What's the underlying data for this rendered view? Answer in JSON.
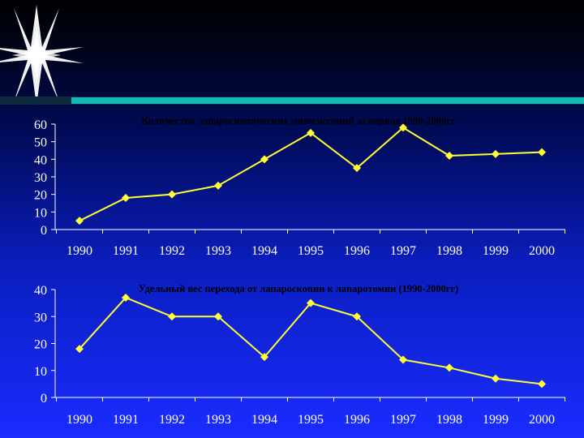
{
  "colors": {
    "series": "#ffff33",
    "axis": "#ffffff",
    "title": "#000000",
    "accent_bar": "#17b8b8"
  },
  "decoration": {
    "star_icon": "starburst-icon"
  },
  "chart_data": [
    {
      "type": "line",
      "title": "Количество лапароскопических миомэктомий за период 1990-2000гг",
      "categories": [
        "1990",
        "1991",
        "1992",
        "1993",
        "1994",
        "1995",
        "1996",
        "1997",
        "1998",
        "1999",
        "2000"
      ],
      "values": [
        5,
        18,
        20,
        25,
        40,
        55,
        35,
        58,
        42,
        43,
        44
      ],
      "xlabel": "",
      "ylabel": "",
      "ylim": [
        0,
        60
      ],
      "yticks": [
        0,
        10,
        20,
        30,
        40,
        50,
        60
      ],
      "ytick_labels": [
        "0",
        "10",
        "20",
        "30",
        "40",
        "50",
        "60"
      ],
      "grid": false,
      "legend": "none"
    },
    {
      "type": "line",
      "title": "Удельный вес перехода от лапароскопии к лапаротомии (1990-2000гг)",
      "categories": [
        "1990",
        "1991",
        "1992",
        "1993",
        "1994",
        "1995",
        "1996",
        "1997",
        "1998",
        "1999",
        "2000"
      ],
      "values": [
        18,
        37,
        30,
        30,
        15,
        35,
        30,
        14,
        11,
        7,
        5
      ],
      "xlabel": "",
      "ylabel": "",
      "ylim": [
        0,
        40
      ],
      "yticks": [
        0,
        10,
        20,
        30,
        40
      ],
      "ytick_labels": [
        "0",
        "10",
        "20",
        "30",
        "40"
      ],
      "grid": false,
      "legend": "none"
    }
  ]
}
